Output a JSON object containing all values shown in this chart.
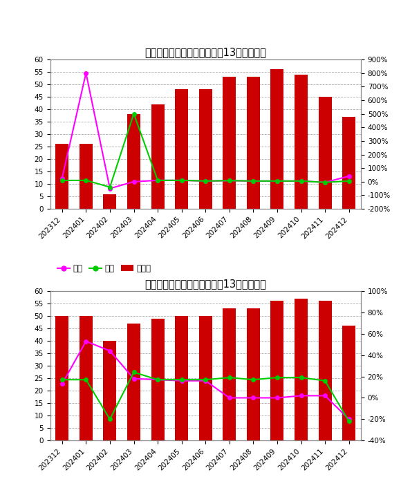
{
  "chart1": {
    "title": "中国绿碳化硅全部生产商过去13个月开工率",
    "categories": [
      "202312",
      "202401",
      "202402",
      "202403",
      "202404",
      "202405",
      "202406",
      "202407",
      "202408",
      "202409",
      "202410",
      "202411",
      "202412"
    ],
    "bar_values": [
      26,
      26,
      6,
      38,
      42,
      48,
      48,
      53,
      53,
      56,
      54,
      45,
      37
    ],
    "yoy_values": [
      26.0,
      800.0,
      -50.0,
      0.0,
      10.0,
      10.0,
      5.0,
      8.0,
      5.0,
      5.0,
      5.0,
      -5.0,
      40.89
    ],
    "mom_values": [
      9.0,
      10.0,
      -40.0,
      500.0,
      10.0,
      10.0,
      5.0,
      8.0,
      5.0,
      5.0,
      5.0,
      -5.0,
      5.0
    ],
    "ylim_left": [
      0,
      60
    ],
    "ylim_right": [
      -200,
      900
    ],
    "right_ticks": [
      -200,
      -100,
      0,
      100,
      200,
      300,
      400,
      500,
      600,
      700,
      800,
      900
    ],
    "right_tick_labels": [
      "-200%",
      "-100%",
      "0%",
      "100%",
      "200%",
      "300%",
      "400%",
      "500%",
      "600%",
      "700%",
      "800%",
      "900%"
    ]
  },
  "chart2": {
    "title": "中国绿碳化硅在产生产商过去13个月开工率",
    "categories": [
      "202312",
      "202401",
      "202402",
      "202403",
      "202404",
      "202405",
      "202406",
      "202407",
      "202408",
      "202409",
      "202410",
      "202411",
      "202412"
    ],
    "bar_values": [
      50,
      50,
      40,
      47,
      49,
      50,
      50,
      53,
      53,
      56,
      57,
      56,
      46
    ],
    "yoy_values": [
      13.0,
      53.0,
      44.0,
      18.0,
      17.0,
      16.0,
      16.0,
      0.0,
      0.0,
      0.0,
      2.0,
      2.0,
      -20.0
    ],
    "mom_values": [
      17.0,
      17.0,
      -20.0,
      24.0,
      17.0,
      17.0,
      17.0,
      19.0,
      17.0,
      19.0,
      19.0,
      16.0,
      -22.0
    ],
    "ylim_left": [
      0,
      60
    ],
    "ylim_right": [
      -40,
      100
    ],
    "right_ticks": [
      -40,
      -20,
      0,
      20,
      40,
      60,
      80,
      100
    ],
    "right_tick_labels": [
      "-40%",
      "-20%",
      "0%",
      "20%",
      "40%",
      "60%",
      "80%",
      "100%"
    ]
  },
  "bar_color": "#CC0000",
  "yoy_color": "#FF00FF",
  "mom_color": "#00CC00",
  "legend_labels": [
    "同比",
    "环比",
    "开工率"
  ],
  "background_color": "#FFFFFF",
  "grid_color": "#AAAAAA",
  "title_fontsize": 10.5,
  "tick_fontsize": 7.5,
  "legend_fontsize": 8.5
}
